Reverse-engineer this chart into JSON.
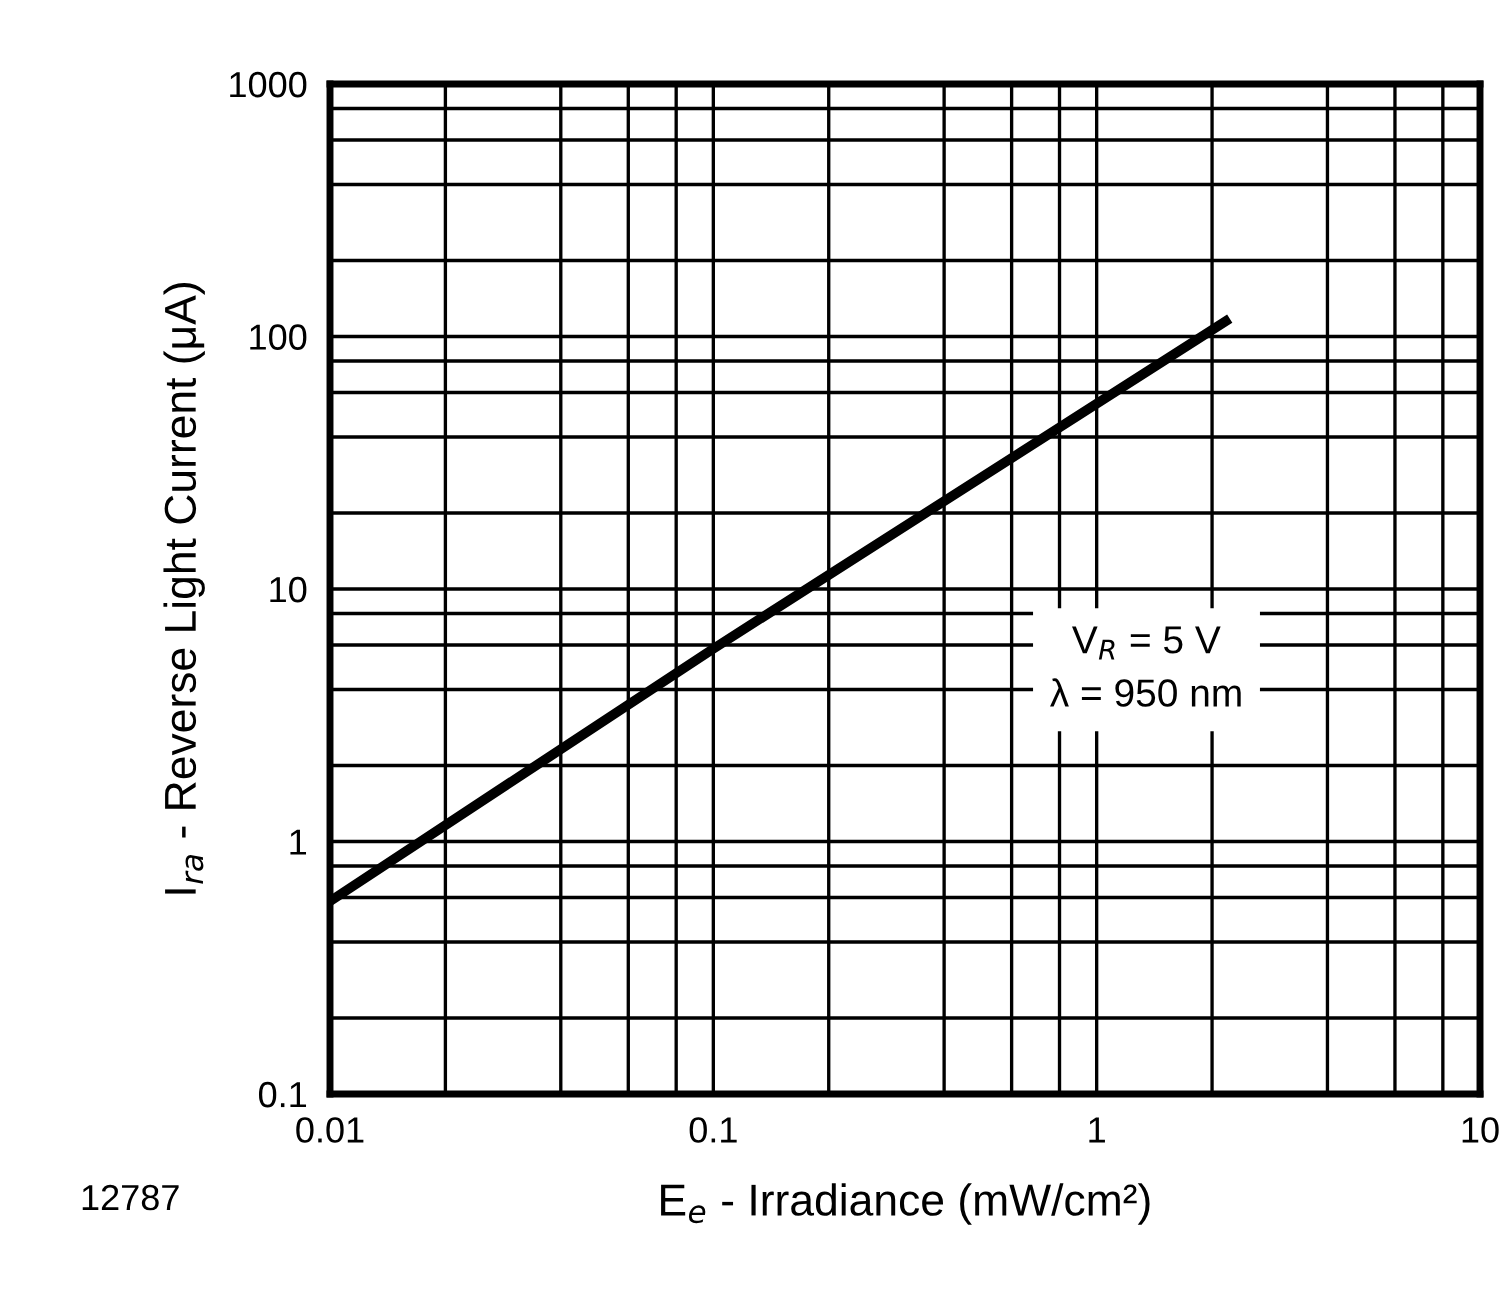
{
  "chart_data": {
    "type": "line",
    "xlabel": "E$_{e}$ - Irradiance (mW/cm²)",
    "ylabel": "I$_{ra}$ - Reverse Light Current (μA)",
    "series": [
      {
        "x": [
          0.01,
          0.1,
          2.17
        ],
        "values": [
          0.58,
          5.8,
          115
        ],
        "color": "#000000"
      }
    ],
    "log": "xy",
    "xlim": [
      0.01,
      10
    ],
    "ylim": [
      0.1,
      1000
    ],
    "xticks": [
      0.01,
      0.1,
      1,
      10
    ],
    "yticks": [
      0.1,
      1,
      10,
      100,
      1000
    ],
    "grid": true,
    "marker": "none",
    "line_style": "solid",
    "legend": false,
    "annotations": [
      "V$_{R}$ = 5 V",
      "λ = 950 nm",
      "12787"
    ]
  }
}
